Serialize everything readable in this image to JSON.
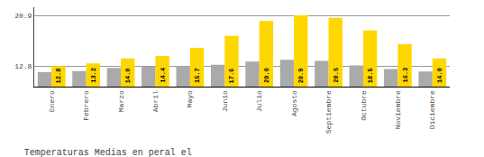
{
  "chart_data": {
    "type": "bar",
    "title": "Temperaturas Medias en peral el",
    "categories": [
      "Enero",
      "Febrero",
      "Marzo",
      "Abril",
      "Mayo",
      "Junio",
      "Julio",
      "Agosto",
      "Septiembre",
      "Octubre",
      "Noviembre",
      "Diciembre"
    ],
    "series": [
      {
        "color": "#AAAAAA",
        "values": [
          11.8,
          12.0,
          12.5,
          12.7,
          12.8,
          13.0,
          13.5,
          13.8,
          13.6,
          12.9,
          12.3,
          11.9
        ]
      },
      {
        "color": "#FFD700",
        "values": [
          12.8,
          13.2,
          14.0,
          14.4,
          15.7,
          17.6,
          20.0,
          20.9,
          20.5,
          18.5,
          16.3,
          14.0
        ],
        "data_labels": true,
        "value_labels": [
          "12.8",
          "13.2",
          "14.0",
          "14.4",
          "15.7",
          "17.6",
          "20.0",
          "20.9",
          "20.5",
          "18.5",
          "16.3",
          "14.0"
        ]
      }
    ],
    "ylim": [
      9.5,
      22.2
    ],
    "yticks": [
      12.8,
      20.9
    ],
    "y2lim": [
      9.5,
      22.2
    ],
    "y2ticks": [
      12.8,
      20.9
    ],
    "grid": true
  }
}
